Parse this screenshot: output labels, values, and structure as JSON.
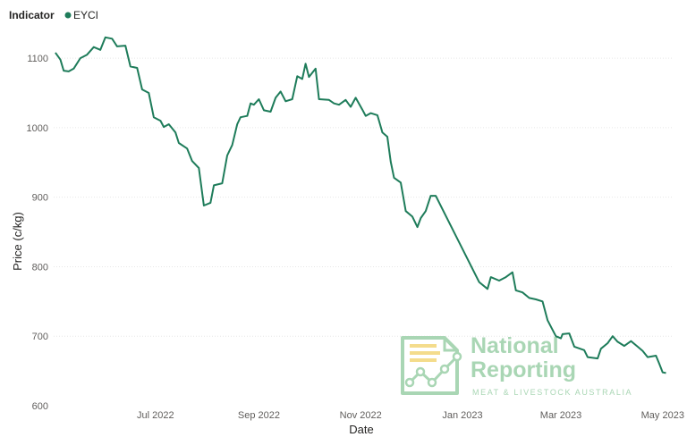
{
  "chart_data": {
    "type": "line",
    "legend": {
      "title": "Indicator",
      "placement": "top-left"
    },
    "xlabel": "Date",
    "ylabel": "Price (c/kg)",
    "ylim": [
      600,
      1140
    ],
    "yticks": [
      "600",
      "700",
      "800",
      "900",
      "1000",
      "1100"
    ],
    "xlim": [
      "2022-05-01",
      "2023-05-07"
    ],
    "xticks": [
      {
        "date": "2022-07-01",
        "label": "Jul 2022"
      },
      {
        "date": "2022-09-01",
        "label": "Sep 2022"
      },
      {
        "date": "2022-11-01",
        "label": "Nov 2022"
      },
      {
        "date": "2023-01-01",
        "label": "Jan 2023"
      },
      {
        "date": "2023-03-01",
        "label": "Mar 2023"
      },
      {
        "date": "2023-05-01",
        "label": "May 2023"
      }
    ],
    "grid": true,
    "series": [
      {
        "name": "EYCI",
        "color": "#1e7c5a",
        "points": [
          [
            "2022-05-02",
            1108
          ],
          [
            "2022-05-05",
            1098
          ],
          [
            "2022-05-07",
            1082
          ],
          [
            "2022-05-10",
            1081
          ],
          [
            "2022-05-13",
            1085
          ],
          [
            "2022-05-17",
            1100
          ],
          [
            "2022-05-21",
            1105
          ],
          [
            "2022-05-25",
            1116
          ],
          [
            "2022-05-29",
            1112
          ],
          [
            "2022-06-01",
            1130
          ],
          [
            "2022-06-05",
            1128
          ],
          [
            "2022-06-08",
            1117
          ],
          [
            "2022-06-13",
            1118
          ],
          [
            "2022-06-16",
            1088
          ],
          [
            "2022-06-20",
            1086
          ],
          [
            "2022-06-23",
            1055
          ],
          [
            "2022-06-27",
            1050
          ],
          [
            "2022-06-30",
            1015
          ],
          [
            "2022-07-04",
            1010
          ],
          [
            "2022-07-06",
            1001
          ],
          [
            "2022-07-09",
            1005
          ],
          [
            "2022-07-13",
            993
          ],
          [
            "2022-07-15",
            978
          ],
          [
            "2022-07-20",
            970
          ],
          [
            "2022-07-23",
            952
          ],
          [
            "2022-07-27",
            942
          ],
          [
            "2022-07-30",
            888
          ],
          [
            "2022-08-03",
            892
          ],
          [
            "2022-08-05",
            917
          ],
          [
            "2022-08-10",
            920
          ],
          [
            "2022-08-13",
            960
          ],
          [
            "2022-08-16",
            975
          ],
          [
            "2022-08-19",
            1005
          ],
          [
            "2022-08-21",
            1015
          ],
          [
            "2022-08-25",
            1017
          ],
          [
            "2022-08-27",
            1035
          ],
          [
            "2022-08-29",
            1033
          ],
          [
            "2022-09-01",
            1041
          ],
          [
            "2022-09-04",
            1025
          ],
          [
            "2022-09-08",
            1023
          ],
          [
            "2022-09-11",
            1043
          ],
          [
            "2022-09-14",
            1052
          ],
          [
            "2022-09-17",
            1038
          ],
          [
            "2022-09-21",
            1041
          ],
          [
            "2022-09-24",
            1074
          ],
          [
            "2022-09-27",
            1070
          ],
          [
            "2022-09-29",
            1092
          ],
          [
            "2022-10-01",
            1073
          ],
          [
            "2022-10-05",
            1085
          ],
          [
            "2022-10-07",
            1041
          ],
          [
            "2022-10-13",
            1040
          ],
          [
            "2022-10-16",
            1035
          ],
          [
            "2022-10-19",
            1033
          ],
          [
            "2022-10-23",
            1040
          ],
          [
            "2022-10-26",
            1030
          ],
          [
            "2022-10-29",
            1043
          ],
          [
            "2022-11-02",
            1026
          ],
          [
            "2022-11-04",
            1017
          ],
          [
            "2022-11-07",
            1021
          ],
          [
            "2022-11-11",
            1018
          ],
          [
            "2022-11-14",
            993
          ],
          [
            "2022-11-17",
            987
          ],
          [
            "2022-11-19",
            951
          ],
          [
            "2022-11-21",
            928
          ],
          [
            "2022-11-25",
            921
          ],
          [
            "2022-11-28",
            880
          ],
          [
            "2022-12-02",
            872
          ],
          [
            "2022-12-05",
            857
          ],
          [
            "2022-12-07",
            870
          ],
          [
            "2022-12-10",
            880
          ],
          [
            "2022-12-13",
            902
          ],
          [
            "2022-12-16",
            902
          ],
          [
            "2023-01-11",
            778
          ],
          [
            "2023-01-16",
            768
          ],
          [
            "2023-01-18",
            785
          ],
          [
            "2023-01-23",
            780
          ],
          [
            "2023-01-27",
            785
          ],
          [
            "2023-01-31",
            792
          ],
          [
            "2023-02-02",
            766
          ],
          [
            "2023-02-06",
            763
          ],
          [
            "2023-02-10",
            755
          ],
          [
            "2023-02-14",
            753
          ],
          [
            "2023-02-18",
            750
          ],
          [
            "2023-02-21",
            723
          ],
          [
            "2023-02-26",
            700
          ],
          [
            "2023-03-01",
            697
          ],
          [
            "2023-03-02",
            703
          ],
          [
            "2023-03-06",
            704
          ],
          [
            "2023-03-09",
            685
          ],
          [
            "2023-03-15",
            680
          ],
          [
            "2023-03-17",
            670
          ],
          [
            "2023-03-23",
            668
          ],
          [
            "2023-03-25",
            682
          ],
          [
            "2023-03-29",
            690
          ],
          [
            "2023-04-01",
            700
          ],
          [
            "2023-04-04",
            692
          ],
          [
            "2023-04-08",
            686
          ],
          [
            "2023-04-12",
            693
          ],
          [
            "2023-04-16",
            685
          ],
          [
            "2023-04-19",
            679
          ],
          [
            "2023-04-22",
            670
          ],
          [
            "2023-04-27",
            672
          ],
          [
            "2023-04-29",
            660
          ],
          [
            "2023-05-01",
            648
          ],
          [
            "2023-05-03",
            647
          ]
        ]
      }
    ]
  },
  "watermark": {
    "line1": "National",
    "line2": "Reporting",
    "tagline": "MEAT & LIVESTOCK AUSTRALIA",
    "color": "#a9d6b4"
  }
}
